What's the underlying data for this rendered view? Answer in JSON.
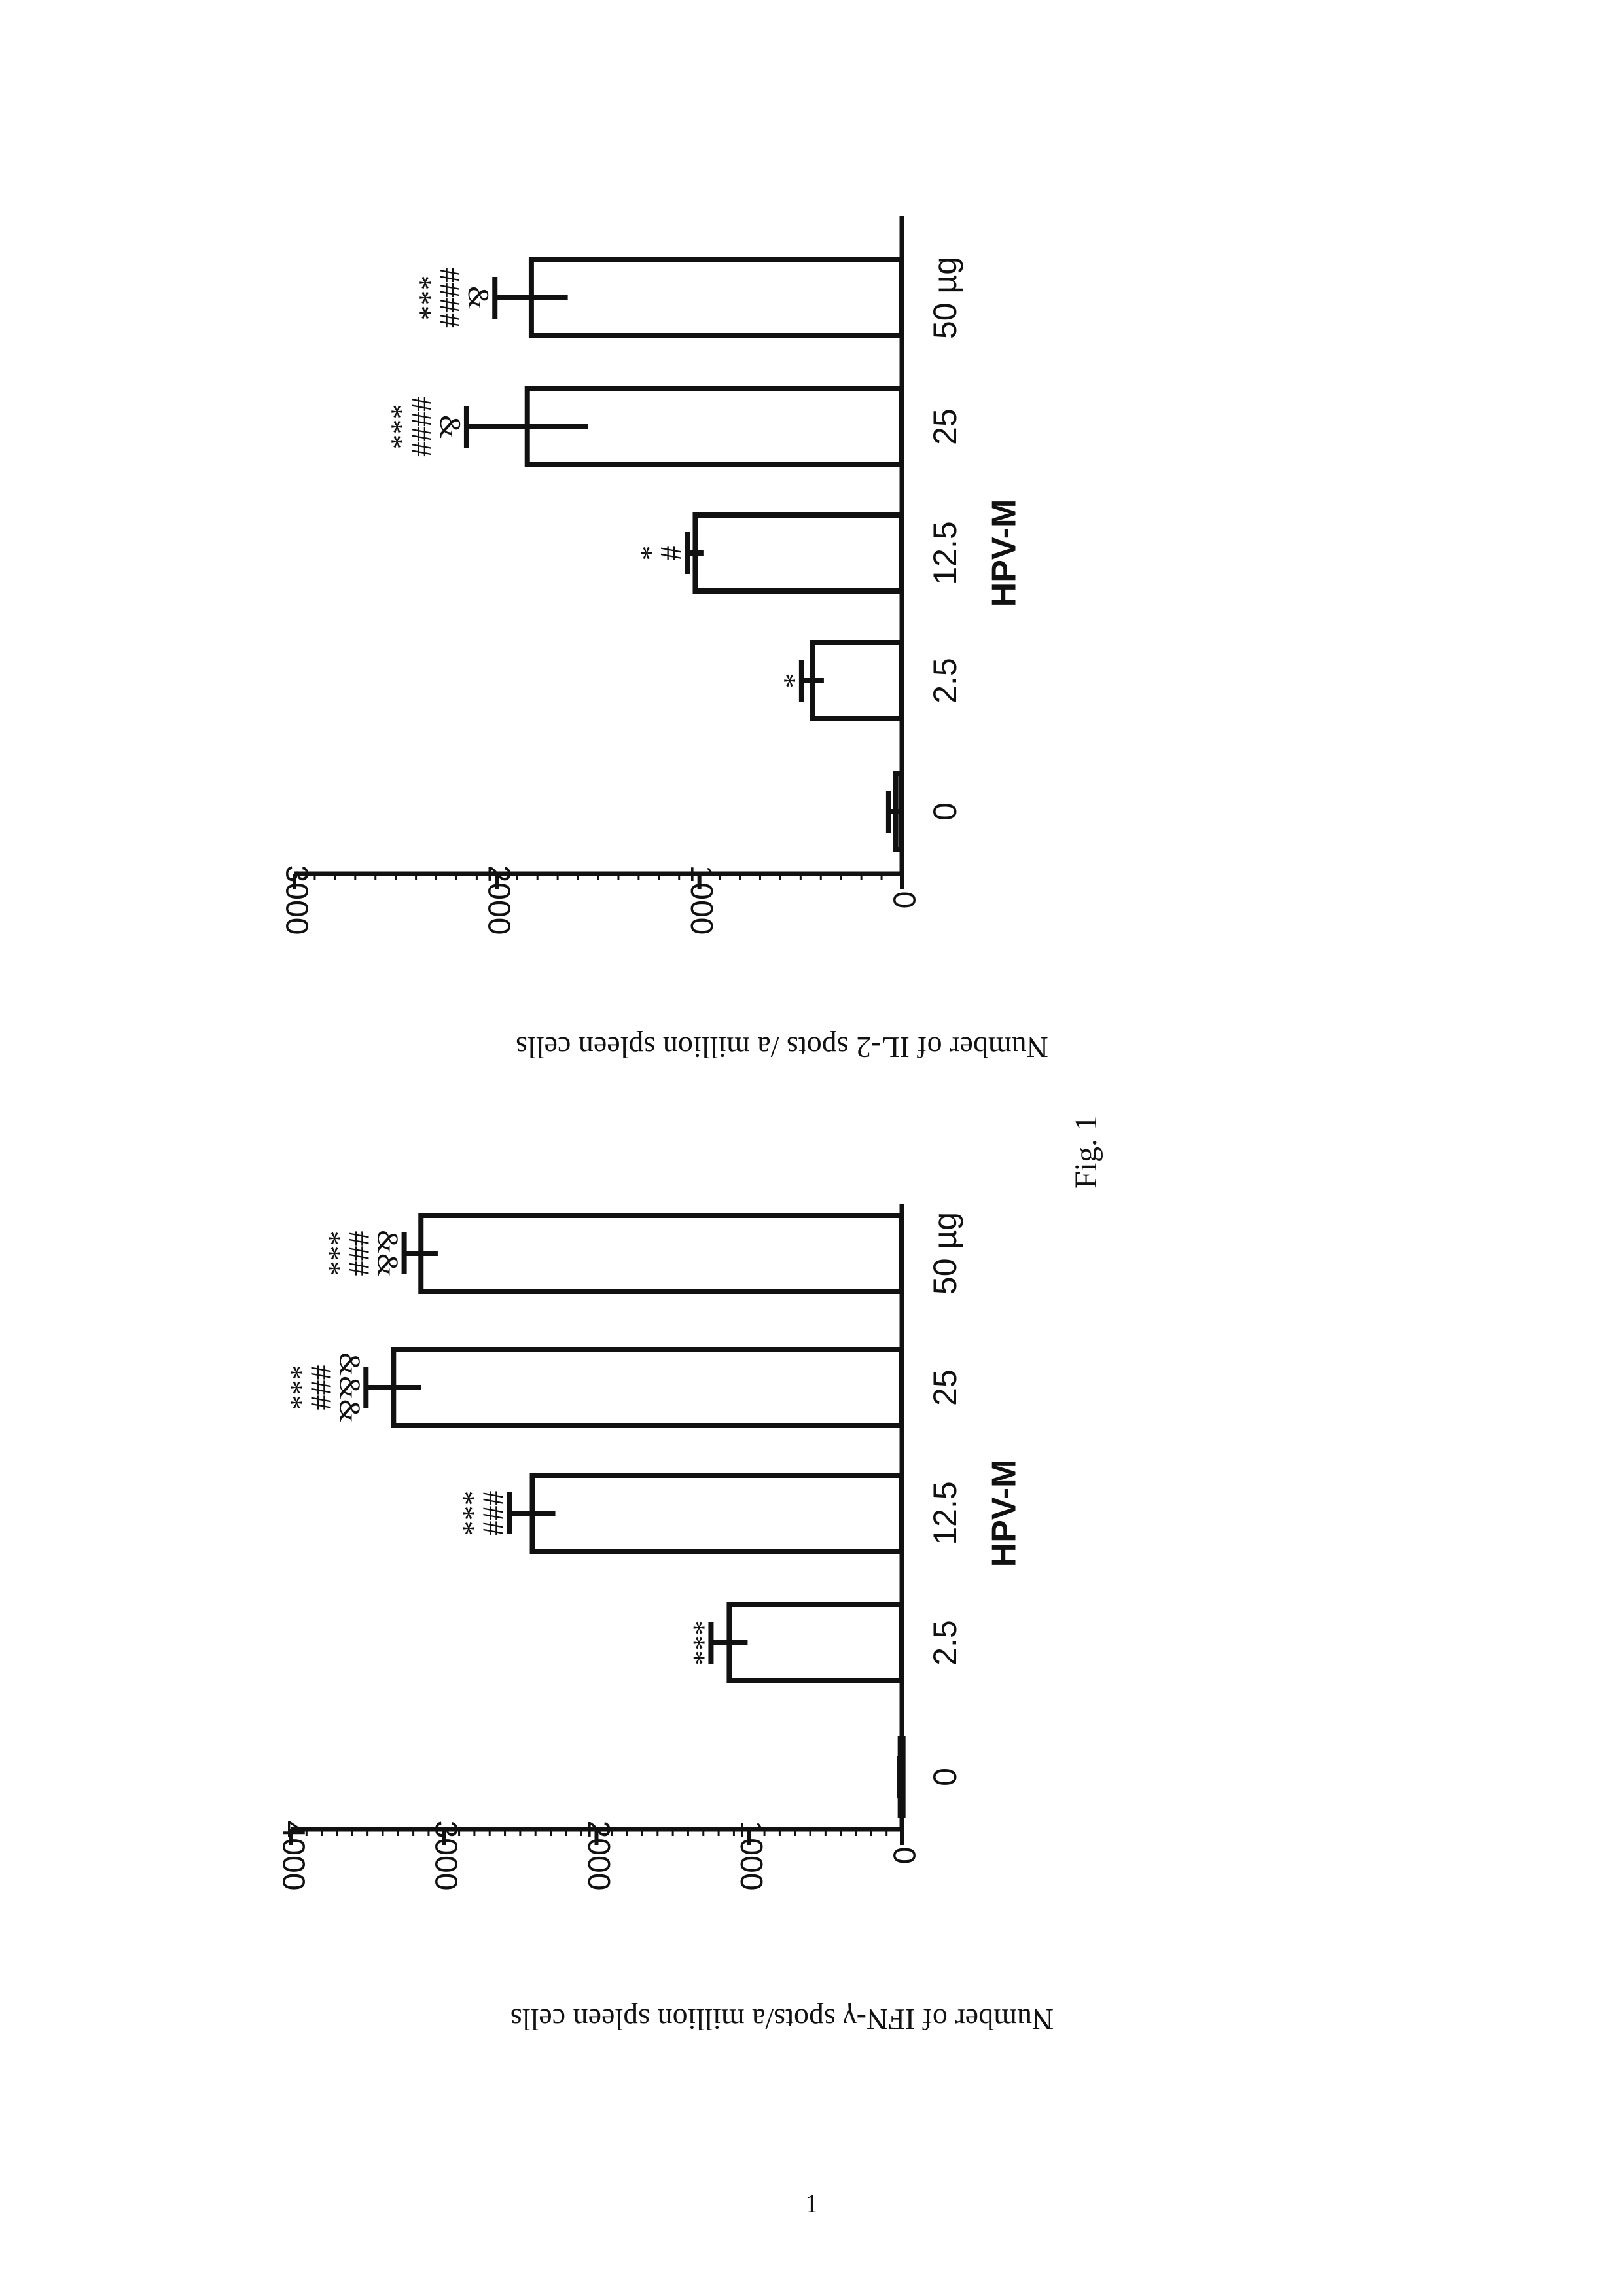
{
  "page": {
    "figure_caption": "Fig. 1",
    "page_number": "1"
  },
  "chart_data": [
    {
      "type": "bar",
      "categories": [
        "0",
        "2.5",
        "12.5",
        "25",
        "50 µg"
      ],
      "values": [
        10,
        1130,
        2420,
        3330,
        3150
      ],
      "errors": [
        5,
        120,
        150,
        180,
        110
      ],
      "significance": [
        "",
        "***",
        "###\n***",
        "&&&\n###\n***",
        "&&\n###\n***"
      ],
      "xlabel": "HPV-M",
      "ylabel": "Number of IFN-γ spots/a million spleen cells",
      "ylim": [
        0,
        4000
      ],
      "yticks": [
        "0",
        "1000",
        "2000",
        "3000",
        "4000"
      ]
    },
    {
      "type": "bar",
      "categories": [
        "0",
        "2.5",
        "12.5",
        "25",
        "50 µg"
      ],
      "values": [
        30,
        440,
        1020,
        1850,
        1830
      ],
      "errors": [
        35,
        55,
        40,
        300,
        180
      ],
      "significance": [
        "",
        "*",
        "#\n*",
        "&\n####\n***",
        "&\n####\n***"
      ],
      "xlabel": "HPV-M",
      "ylabel": "Number of IL-2 spots /a million spleen cells",
      "ylim": [
        0,
        3000
      ],
      "yticks": [
        "0",
        "1000",
        "2000",
        "3000"
      ]
    }
  ]
}
